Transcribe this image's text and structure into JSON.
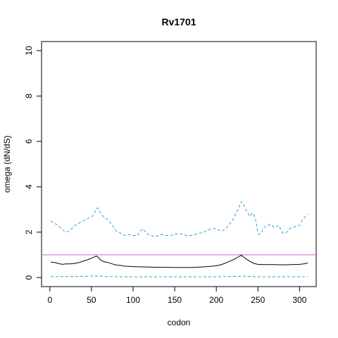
{
  "chart_data": {
    "type": "line",
    "title": "Rv1701",
    "xlabel": "codon",
    "ylabel": "omega (dN/dS)",
    "xlim": [
      -10,
      320
    ],
    "ylim": [
      -0.4,
      10.4
    ],
    "x_ticks": [
      0,
      50,
      100,
      150,
      200,
      250,
      300
    ],
    "y_ticks": [
      0,
      2,
      4,
      6,
      8,
      10
    ],
    "grid": false,
    "legend": "none",
    "colors": {
      "mean": "#000000",
      "bounds": "#29a3d6",
      "reference": "#cc66cc"
    },
    "reference_line": {
      "y": 1
    },
    "series": [
      {
        "role": "upper",
        "style": "dashed",
        "x": [
          1,
          5,
          10,
          15,
          20,
          25,
          30,
          35,
          40,
          45,
          50,
          53,
          56,
          58,
          60,
          65,
          70,
          75,
          80,
          85,
          90,
          95,
          100,
          105,
          108,
          111,
          114,
          118,
          122,
          126,
          130,
          135,
          140,
          145,
          150,
          155,
          160,
          165,
          170,
          175,
          180,
          185,
          190,
          195,
          200,
          205,
          210,
          215,
          220,
          224,
          227,
          230,
          233,
          236,
          240,
          244,
          247,
          250,
          252,
          254,
          257,
          260,
          265,
          270,
          275,
          280,
          285,
          290,
          295,
          300,
          303,
          306,
          310
        ],
        "y": [
          2.5,
          2.4,
          2.3,
          2.1,
          2.0,
          2.1,
          2.3,
          2.4,
          2.5,
          2.6,
          2.65,
          2.8,
          3.05,
          3.05,
          2.9,
          2.65,
          2.55,
          2.3,
          2.05,
          1.95,
          1.85,
          1.9,
          1.85,
          1.85,
          2.0,
          2.15,
          2.05,
          1.9,
          1.85,
          1.8,
          1.85,
          1.9,
          1.85,
          1.85,
          1.9,
          1.95,
          1.9,
          1.85,
          1.85,
          1.9,
          1.95,
          2.0,
          2.1,
          2.15,
          2.15,
          2.05,
          2.1,
          2.3,
          2.55,
          2.85,
          3.05,
          3.35,
          3.2,
          2.95,
          2.7,
          2.85,
          2.6,
          1.95,
          1.9,
          1.95,
          2.2,
          2.25,
          2.35,
          2.2,
          2.3,
          1.95,
          2.0,
          2.2,
          2.25,
          2.3,
          2.5,
          2.65,
          2.8
        ]
      },
      {
        "role": "mean",
        "style": "solid",
        "x": [
          1,
          5,
          10,
          15,
          20,
          25,
          30,
          35,
          40,
          45,
          50,
          53,
          56,
          59,
          62,
          65,
          70,
          75,
          80,
          85,
          90,
          95,
          100,
          110,
          120,
          130,
          140,
          150,
          160,
          170,
          180,
          190,
          200,
          205,
          210,
          215,
          220,
          224,
          227,
          230,
          233,
          236,
          240,
          245,
          250,
          255,
          260,
          265,
          270,
          280,
          290,
          300,
          305,
          310
        ],
        "y": [
          0.68,
          0.67,
          0.62,
          0.58,
          0.6,
          0.6,
          0.62,
          0.66,
          0.72,
          0.78,
          0.85,
          0.9,
          0.95,
          0.85,
          0.75,
          0.7,
          0.66,
          0.6,
          0.55,
          0.53,
          0.5,
          0.49,
          0.48,
          0.47,
          0.46,
          0.45,
          0.45,
          0.44,
          0.44,
          0.44,
          0.46,
          0.48,
          0.52,
          0.56,
          0.62,
          0.7,
          0.78,
          0.85,
          0.92,
          0.98,
          0.9,
          0.82,
          0.72,
          0.62,
          0.58,
          0.57,
          0.57,
          0.57,
          0.57,
          0.56,
          0.57,
          0.58,
          0.6,
          0.64
        ]
      },
      {
        "role": "lower",
        "style": "dashed",
        "x": [
          1,
          20,
          40,
          56,
          70,
          100,
          150,
          200,
          230,
          250,
          280,
          310
        ],
        "y": [
          0.04,
          0.04,
          0.05,
          0.07,
          0.04,
          0.03,
          0.03,
          0.03,
          0.06,
          0.03,
          0.03,
          0.04
        ]
      }
    ]
  }
}
